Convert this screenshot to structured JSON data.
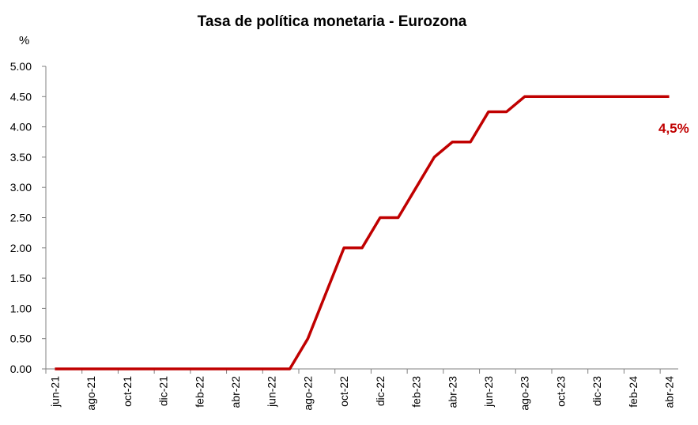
{
  "chart_data": {
    "type": "line",
    "title": "Tasa de política monetaria - Eurozona",
    "ylabel": "%",
    "xlabel": "",
    "ylim": [
      0,
      5
    ],
    "yticks": [
      "0.00",
      "0.50",
      "1.00",
      "1.50",
      "2.00",
      "2.50",
      "3.00",
      "3.50",
      "4.00",
      "4.50",
      "5.00"
    ],
    "xtick_labels": [
      "jun-21",
      "ago-21",
      "oct-21",
      "dic-21",
      "feb-22",
      "abr-22",
      "jun-22",
      "ago-22",
      "oct-22",
      "dic-22",
      "feb-23",
      "abr-23",
      "jun-23",
      "ago-23",
      "oct-23",
      "dic-23",
      "feb-24",
      "abr-24"
    ],
    "categories": [
      "jun-21",
      "jul-21",
      "ago-21",
      "sep-21",
      "oct-21",
      "nov-21",
      "dic-21",
      "ene-22",
      "feb-22",
      "mar-22",
      "abr-22",
      "may-22",
      "jun-22",
      "jul-22",
      "ago-22",
      "sep-22",
      "oct-22",
      "nov-22",
      "dic-22",
      "ene-23",
      "feb-23",
      "mar-23",
      "abr-23",
      "may-23",
      "jun-23",
      "jul-23",
      "ago-23",
      "sep-23",
      "oct-23",
      "nov-23",
      "dic-23",
      "ene-24",
      "feb-24",
      "mar-24",
      "abr-24"
    ],
    "series": [
      {
        "values": [
          0,
          0,
          0,
          0,
          0,
          0,
          0,
          0,
          0,
          0,
          0,
          0,
          0,
          0,
          0.5,
          1.25,
          2.0,
          2.0,
          2.5,
          2.5,
          3.0,
          3.5,
          3.75,
          3.75,
          4.25,
          4.25,
          4.5,
          4.5,
          4.5,
          4.5,
          4.5,
          4.5,
          4.5,
          4.5,
          4.5
        ]
      }
    ],
    "annotation": "4,5%",
    "line_color": "#c00000",
    "grid": false,
    "legend": "none"
  }
}
